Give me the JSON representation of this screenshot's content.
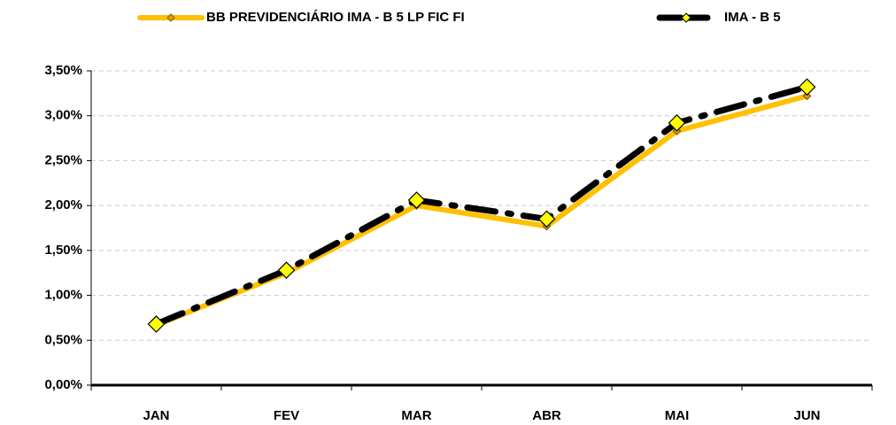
{
  "chart_data": {
    "type": "line",
    "categories": [
      "JAN",
      "FEV",
      "MAR",
      "ABR",
      "MAI",
      "JUN"
    ],
    "series": [
      {
        "name": "BB PREVIDENCIÁRIO IMA - B 5 LP FIC FI",
        "color": "#ffc000",
        "values": [
          0.67,
          1.25,
          2.0,
          1.77,
          2.83,
          3.22
        ]
      },
      {
        "name": "IMA - B 5",
        "color": "#000000",
        "values": [
          0.68,
          1.28,
          2.06,
          1.85,
          2.92,
          3.32
        ]
      }
    ],
    "ylim": [
      0,
      3.5
    ],
    "yticks": [
      {
        "value": 0,
        "label": "0,00%"
      },
      {
        "value": 0.5,
        "label": "0,50%"
      },
      {
        "value": 1,
        "label": "1,00%"
      },
      {
        "value": 1.5,
        "label": "1,50%"
      },
      {
        "value": 2,
        "label": "2,00%"
      },
      {
        "value": 2.5,
        "label": "2,50%"
      },
      {
        "value": 3,
        "label": "3,00%"
      },
      {
        "value": 3.5,
        "label": "3,50%"
      }
    ],
    "grid": true,
    "legend": "top"
  }
}
